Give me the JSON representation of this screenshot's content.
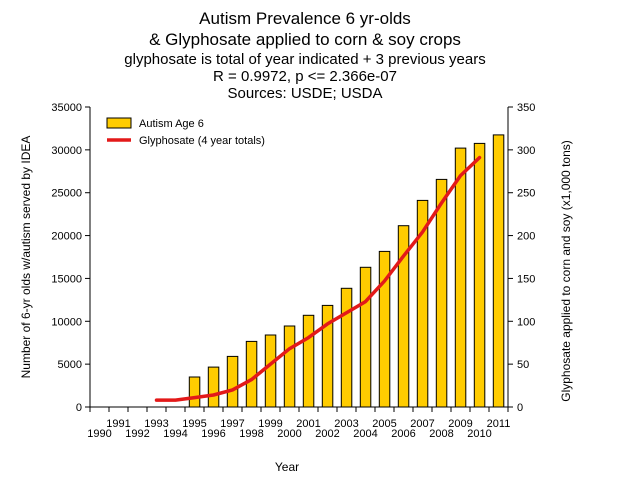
{
  "chart_data": {
    "type": "bar",
    "title_lines": [
      "Autism Prevalence 6 yr-olds",
      "& Glyphosate applied to corn & soy crops",
      "glyphosate is total of year indicated + 3 previous years",
      "R = 0.9972, p <= 2.366e-07",
      "Sources: USDE; USDA"
    ],
    "xlabel": "Year",
    "ylabel": "Number of 6-yr olds w/autism served by IDEA",
    "y2label": "Glyphosate applied to corn and soy (x1,000 tons)",
    "categories": [
      "1990",
      "1991",
      "1992",
      "1993",
      "1994",
      "1995",
      "1996",
      "1997",
      "1998",
      "1999",
      "2000",
      "2001",
      "2002",
      "2003",
      "2004",
      "2005",
      "2006",
      "2007",
      "2008",
      "2009",
      "2010",
      "2011"
    ],
    "ylim": [
      0,
      35000
    ],
    "y2lim": [
      0,
      350
    ],
    "yticks": [
      0,
      5000,
      10000,
      15000,
      20000,
      25000,
      30000,
      35000
    ],
    "y2ticks": [
      0,
      50,
      100,
      150,
      200,
      250,
      300,
      350
    ],
    "legend_position": "top-left",
    "grid": false,
    "series": [
      {
        "name": "Autism Age 6",
        "kind": "bar",
        "axis": "left",
        "color": "#FFCC00",
        "values": [
          null,
          null,
          null,
          null,
          null,
          3500,
          4650,
          5900,
          7650,
          8400,
          9450,
          10700,
          11850,
          13850,
          16300,
          18150,
          21150,
          24100,
          26550,
          30200,
          30750,
          31750
        ]
      },
      {
        "name": "Glyphosate (4 year totals)",
        "kind": "line",
        "axis": "right",
        "color": "#E31919",
        "values": [
          null,
          null,
          null,
          8,
          8,
          11,
          14,
          20,
          32,
          50,
          68,
          81,
          97,
          110,
          123,
          147,
          176,
          204,
          238,
          270,
          291,
          null
        ]
      }
    ]
  }
}
